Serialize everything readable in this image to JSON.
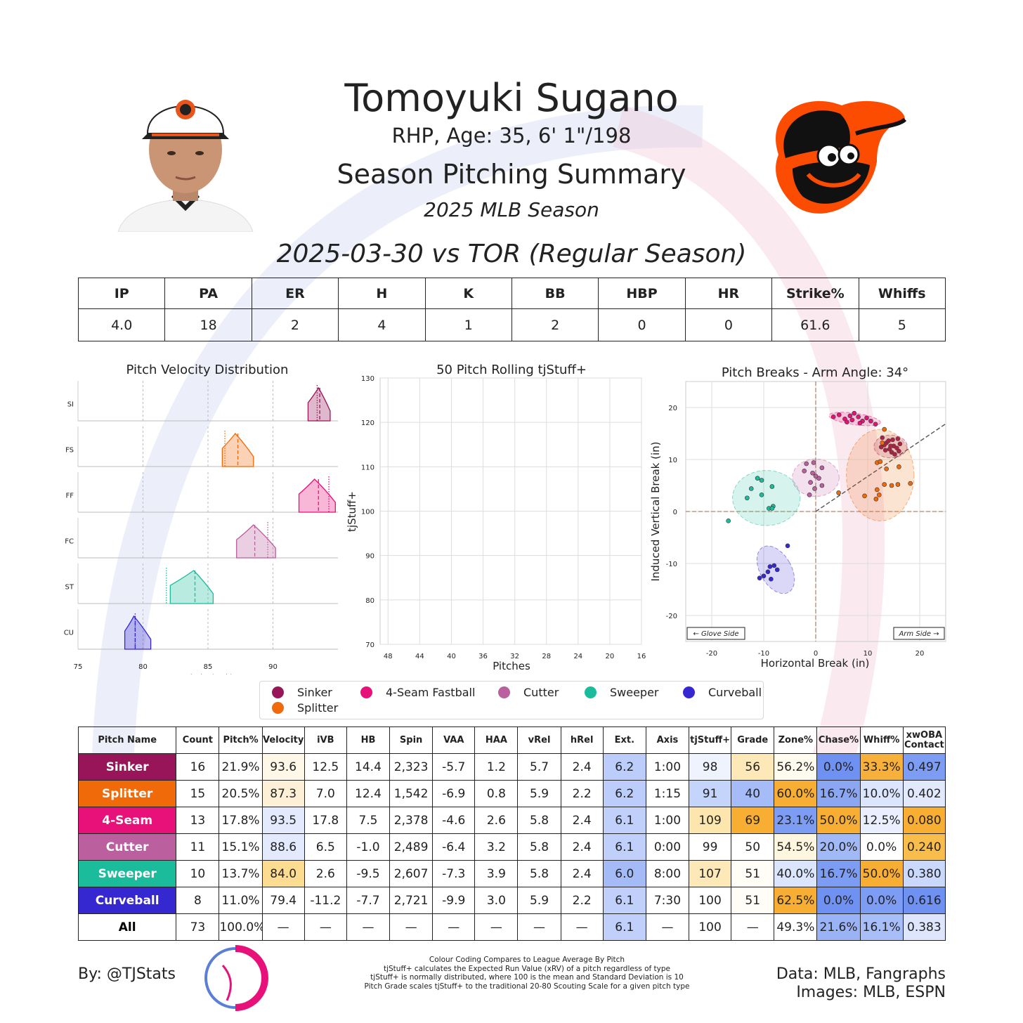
{
  "header": {
    "player_name": "Tomoyuki Sugano",
    "player_bio": "RHP, Age: 35, 6' 1\"/198",
    "report_title": "Season Pitching Summary",
    "season": "2025 MLB Season",
    "game": "2025-03-30 vs TOR (Regular Season)"
  },
  "game_stats": {
    "headers": [
      "IP",
      "PA",
      "ER",
      "H",
      "K",
      "BB",
      "HBP",
      "HR",
      "Strike%",
      "Whiffs"
    ],
    "values": [
      "4.0",
      "18",
      "2",
      "4",
      "1",
      "2",
      "0",
      "0",
      "61.6",
      "5"
    ]
  },
  "colors": {
    "Sinker": "#99155a",
    "Splitter": "#f16a09",
    "4-Seam Fastball": "#e8117a",
    "Cutter": "#bb5f9e",
    "Sweeper": "#1abc9c",
    "Curveball": "#3528d1"
  },
  "chart_data": [
    {
      "type": "area",
      "title": "Pitch Velocity Distribution",
      "xlabel": "Velocity (mph)",
      "xlim": [
        75,
        95
      ],
      "xticks": [
        "75",
        "80",
        "85",
        "90"
      ],
      "categories": [
        "SI",
        "FS",
        "FF",
        "FC",
        "ST",
        "CU"
      ],
      "series": [
        {
          "name": "SI",
          "pitch": "Sinker",
          "min": 92.7,
          "max": 94.4,
          "pitcher_mean": 93.6,
          "league_mean": 93.4,
          "peak": 93.5
        },
        {
          "name": "FS",
          "pitch": "Splitter",
          "min": 86.1,
          "max": 88.5,
          "pitcher_mean": 87.3,
          "league_mean": 86.3,
          "peak": 87.1
        },
        {
          "name": "FF",
          "pitch": "4-Seam Fastball",
          "min": 92.0,
          "max": 94.8,
          "pitcher_mean": 93.5,
          "league_mean": 94.3,
          "peak": 93.2
        },
        {
          "name": "FC",
          "pitch": "Cutter",
          "min": 87.2,
          "max": 90.2,
          "pitcher_mean": 88.6,
          "league_mean": 89.6,
          "peak": 88.5
        },
        {
          "name": "ST",
          "pitch": "Sweeper",
          "min": 82.1,
          "max": 85.4,
          "pitcher_mean": 84.0,
          "league_mean": 81.8,
          "peak": 83.9
        },
        {
          "name": "CU",
          "pitch": "Curveball",
          "min": 78.6,
          "max": 80.6,
          "pitcher_mean": 79.4,
          "league_mean": 79.4,
          "peak": 79.3
        }
      ]
    },
    {
      "type": "line",
      "title": "50 Pitch Rolling tjStuff+",
      "xlabel": "Pitches",
      "ylabel": "tjStuff+",
      "xlim": [
        49,
        16
      ],
      "ylim": [
        70,
        130
      ],
      "xticks": [
        "48",
        "44",
        "40",
        "36",
        "32",
        "28",
        "24",
        "20",
        "16"
      ],
      "yticks": [
        "70",
        "80",
        "90",
        "100",
        "110",
        "120",
        "130"
      ],
      "series": []
    },
    {
      "type": "scatter",
      "title": "Pitch Breaks - Arm Angle: 34°",
      "xlabel": "Horizontal Break (in)",
      "ylabel": "Induced Vertical Break (in)",
      "xlim": [
        -25,
        25
      ],
      "ylim": [
        -25,
        25
      ],
      "xticks": [
        "-20",
        "-10",
        "0",
        "10",
        "20"
      ],
      "yticks": [
        "20",
        "10",
        "0",
        "-10",
        "-20"
      ],
      "arm_angle_deg": 34,
      "annotations": [
        "← Glove Side",
        "Arm Side →"
      ],
      "series": [
        {
          "name": "4-Seam Fastball",
          "pitch": "4-Seam Fastball",
          "ellipse": {
            "cx": 7.5,
            "cy": 17.8,
            "rx": 5,
            "ry": 1.1
          },
          "points": [
            [
              3.4,
              18.2
            ],
            [
              4.5,
              18.6
            ],
            [
              5.6,
              17.8
            ],
            [
              6.6,
              18.4
            ],
            [
              7.0,
              17.6
            ],
            [
              8.2,
              18.2
            ],
            [
              9.0,
              17.4
            ],
            [
              9.8,
              18.0
            ],
            [
              10.6,
              17.4
            ],
            [
              7.4,
              18.9
            ],
            [
              11.5,
              16.8
            ],
            [
              6.0,
              17.2
            ],
            [
              8.5,
              17.0
            ]
          ]
        },
        {
          "name": "Sinker",
          "pitch": "Sinker",
          "ellipse": {
            "cx": 14.4,
            "cy": 12.5,
            "rx": 3.2,
            "ry": 2.2
          },
          "points": [
            [
              12.8,
              14.2
            ],
            [
              13.6,
              13.2
            ],
            [
              14.2,
              12.0
            ],
            [
              15.0,
              12.6
            ],
            [
              14.6,
              11.4
            ],
            [
              15.6,
              12.2
            ],
            [
              13.2,
              12.8
            ],
            [
              16.2,
              13.0
            ],
            [
              14.0,
              13.6
            ],
            [
              15.2,
              11.0
            ],
            [
              13.4,
              11.8
            ],
            [
              16.0,
              11.6
            ],
            [
              14.8,
              13.8
            ],
            [
              12.6,
              12.4
            ],
            [
              15.8,
              14.0
            ],
            [
              14.4,
              12.6
            ]
          ]
        },
        {
          "name": "Splitter",
          "pitch": "Splitter",
          "ellipse": {
            "cx": 12.4,
            "cy": 7.0,
            "rx": 6.5,
            "ry": 8.8
          },
          "points": [
            [
              13.2,
              15.8
            ],
            [
              12.8,
              13.2
            ],
            [
              11.8,
              9.4
            ],
            [
              12.4,
              9.6
            ],
            [
              13.6,
              8.2
            ],
            [
              16.0,
              8.6
            ],
            [
              18.2,
              5.4
            ],
            [
              15.8,
              5.2
            ],
            [
              14.6,
              5.0
            ],
            [
              13.2,
              5.2
            ],
            [
              11.8,
              4.2
            ],
            [
              12.2,
              3.2
            ],
            [
              11.6,
              2.4
            ],
            [
              9.4,
              3.0
            ],
            [
              4.4,
              3.6
            ]
          ]
        },
        {
          "name": "Cutter",
          "pitch": "Cutter",
          "ellipse": {
            "cx": 0.0,
            "cy": 6.5,
            "rx": 4.5,
            "ry": 3.6
          },
          "points": [
            [
              -1.8,
              9.2
            ],
            [
              -0.4,
              9.4
            ],
            [
              -2.2,
              7.8
            ],
            [
              -0.6,
              7.4
            ],
            [
              1.2,
              8.4
            ],
            [
              0.6,
              6.4
            ],
            [
              -1.0,
              5.6
            ],
            [
              1.2,
              5.0
            ],
            [
              -0.2,
              4.4
            ],
            [
              -1.2,
              3.2
            ],
            [
              0.0,
              6.8
            ]
          ]
        },
        {
          "name": "Sweeper",
          "pitch": "Sweeper",
          "ellipse": {
            "cx": -9.5,
            "cy": 2.6,
            "rx": 6.5,
            "ry": 5.3
          },
          "points": [
            [
              -11.2,
              6.4
            ],
            [
              -10.4,
              6.0
            ],
            [
              -8.4,
              4.8
            ],
            [
              -12.4,
              4.4
            ],
            [
              -10.4,
              3.2
            ],
            [
              -13.2,
              2.6
            ],
            [
              -8.2,
              1.0
            ],
            [
              -9.0,
              0.6
            ],
            [
              -8.4,
              0.6
            ],
            [
              -16.8,
              -1.8
            ]
          ]
        },
        {
          "name": "Curveball",
          "pitch": "Curveball",
          "ellipse": {
            "cx": -7.7,
            "cy": -11.2,
            "rx": 3.0,
            "ry": 5.0
          },
          "points": [
            [
              -5.4,
              -6.6
            ],
            [
              -8.8,
              -10.6
            ],
            [
              -8.0,
              -10.4
            ],
            [
              -7.4,
              -11.2
            ],
            [
              -9.2,
              -11.6
            ],
            [
              -10.0,
              -12.4
            ],
            [
              -8.6,
              -13.0
            ],
            [
              -10.8,
              -12.8
            ]
          ]
        }
      ]
    }
  ],
  "legend": {
    "items": [
      {
        "label": "Sinker",
        "color": "#99155a"
      },
      {
        "label": "4-Seam Fastball",
        "color": "#e8117a"
      },
      {
        "label": "Cutter",
        "color": "#bb5f9e"
      },
      {
        "label": "Sweeper",
        "color": "#1abc9c"
      },
      {
        "label": "Curveball",
        "color": "#3528d1"
      },
      {
        "label": "Splitter",
        "color": "#f16a09"
      }
    ]
  },
  "pitch_table": {
    "headers": [
      "Pitch Name",
      "Count",
      "Pitch%",
      "Velocity",
      "iVB",
      "HB",
      "Spin",
      "VAA",
      "HAA",
      "vRel",
      "hRel",
      "Ext.",
      "Axis",
      "tjStuff+",
      "Grade",
      "Zone%",
      "Chase%",
      "Whiff%",
      "xwOBA Contact"
    ],
    "rows": [
      {
        "name": "Sinker",
        "color": "#99155a",
        "cells": [
          "16",
          "21.9%",
          "93.6",
          "12.5",
          "14.4",
          "2,323",
          "-5.7",
          "1.2",
          "5.7",
          "2.4",
          "6.2",
          "1:00",
          "98",
          "56",
          "56.2%",
          "0.0%",
          "33.3%",
          "0.497"
        ],
        "shades": [
          "",
          "",
          "#fff8e8",
          "",
          "",
          "",
          "",
          "",
          "",
          "",
          "#bccdfb",
          "",
          "#eef3fe",
          "#fde9b8",
          "#fffbef",
          "#6f92f2",
          "#f7b13a",
          "#7d9cf3"
        ]
      },
      {
        "name": "Splitter",
        "color": "#f16a09",
        "cells": [
          "15",
          "20.5%",
          "87.3",
          "7.0",
          "12.4",
          "1,542",
          "-6.9",
          "0.8",
          "5.9",
          "2.2",
          "6.2",
          "1:15",
          "91",
          "40",
          "60.0%",
          "16.7%",
          "10.0%",
          "0.402"
        ],
        "shades": [
          "",
          "",
          "#fdf0d6",
          "",
          "",
          "",
          "",
          "",
          "",
          "",
          "#bccdfb",
          "",
          "#c5d4fb",
          "#a5bcf8",
          "#f7ae33",
          "#8ba7f4",
          "#dbe5fd",
          "#e2e9fd"
        ]
      },
      {
        "name": "4-Seam",
        "color": "#e8117a",
        "cells": [
          "13",
          "17.8%",
          "93.5",
          "17.8",
          "7.5",
          "2,378",
          "-4.6",
          "2.6",
          "5.8",
          "2.4",
          "6.1",
          "1:00",
          "109",
          "69",
          "23.1%",
          "50.0%",
          "12.5%",
          "0.080"
        ],
        "shades": [
          "",
          "",
          "#e3eafd",
          "",
          "",
          "",
          "",
          "",
          "",
          "",
          "#c0d0fb",
          "",
          "#fde6ad",
          "#f7ae33",
          "#7d9cf3",
          "#f7ae33",
          "#e9effe",
          "#f7ae33"
        ]
      },
      {
        "name": "Cutter",
        "color": "#bb5f9e",
        "cells": [
          "11",
          "15.1%",
          "88.6",
          "6.5",
          "-1.0",
          "2,489",
          "-6.4",
          "3.2",
          "5.8",
          "2.4",
          "6.1",
          "0:00",
          "99",
          "50",
          "54.5%",
          "20.0%",
          "0.0%",
          "0.240"
        ],
        "shades": [
          "",
          "",
          "#e3eafd",
          "",
          "",
          "",
          "",
          "",
          "",
          "",
          "#c0d0fb",
          "",
          "",
          "",
          "#fff6df",
          "#a2b9f7",
          "#ffffff",
          "#f9bd4b"
        ]
      },
      {
        "name": "Sweeper",
        "color": "#1abc9c",
        "cells": [
          "10",
          "13.7%",
          "84.0",
          "2.6",
          "-9.5",
          "2,607",
          "-7.3",
          "3.9",
          "5.8",
          "2.4",
          "6.0",
          "8:00",
          "107",
          "51",
          "40.0%",
          "16.7%",
          "50.0%",
          "0.380"
        ],
        "shades": [
          "",
          "",
          "#fcdc90",
          "",
          "",
          "",
          "",
          "",
          "",
          "",
          "#a4bbf8",
          "",
          "#fde9b8",
          "#fffdf6",
          "#dbe5fd",
          "#7d9cf3",
          "#f7ae33",
          "#cad8fc"
        ]
      },
      {
        "name": "Curveball",
        "color": "#3528d1",
        "cells": [
          "8",
          "11.0%",
          "79.4",
          "-11.2",
          "-7.7",
          "2,721",
          "-9.9",
          "3.0",
          "5.9",
          "2.2",
          "6.1",
          "7:30",
          "100",
          "51",
          "62.5%",
          "0.0%",
          "0.0%",
          "0.616"
        ],
        "shades": [
          "",
          "",
          "",
          "",
          "",
          "",
          "",
          "",
          "",
          "",
          "#c0d0fb",
          "",
          "",
          "#fffdf6",
          "#f7ae33",
          "#6f92f2",
          "#7d9cf3",
          "#6f92f2"
        ]
      },
      {
        "name": "All",
        "color": "#ffffff",
        "cells": [
          "73",
          "100.0%",
          "—",
          "—",
          "—",
          "—",
          "—",
          "—",
          "—",
          "—",
          "6.1",
          "—",
          "100",
          "—",
          "49.3%",
          "21.6%",
          "16.1%",
          "0.383"
        ],
        "shades": [
          "",
          "",
          "",
          "",
          "",
          "",
          "",
          "",
          "",
          "",
          "#c0d0fb",
          "",
          "",
          "",
          "",
          "#9ab3f6",
          "#a8bef8",
          "#dde6fd"
        ]
      }
    ]
  },
  "footer": {
    "byline": "By: @TJStats",
    "notes": [
      "Colour Coding Compares to League Average By Pitch",
      "tjStuff+ calculates the Expected Run Value (xRV) of a pitch regardless of type",
      "tjStuff+ is normally distributed, where 100 is the mean and Standard Deviation is 10",
      "Pitch Grade scales tjStuff+ to the traditional 20-80 Scouting Scale for a given pitch type"
    ],
    "data_source": "Data: MLB, Fangraphs",
    "image_source": "Images: MLB, ESPN"
  }
}
